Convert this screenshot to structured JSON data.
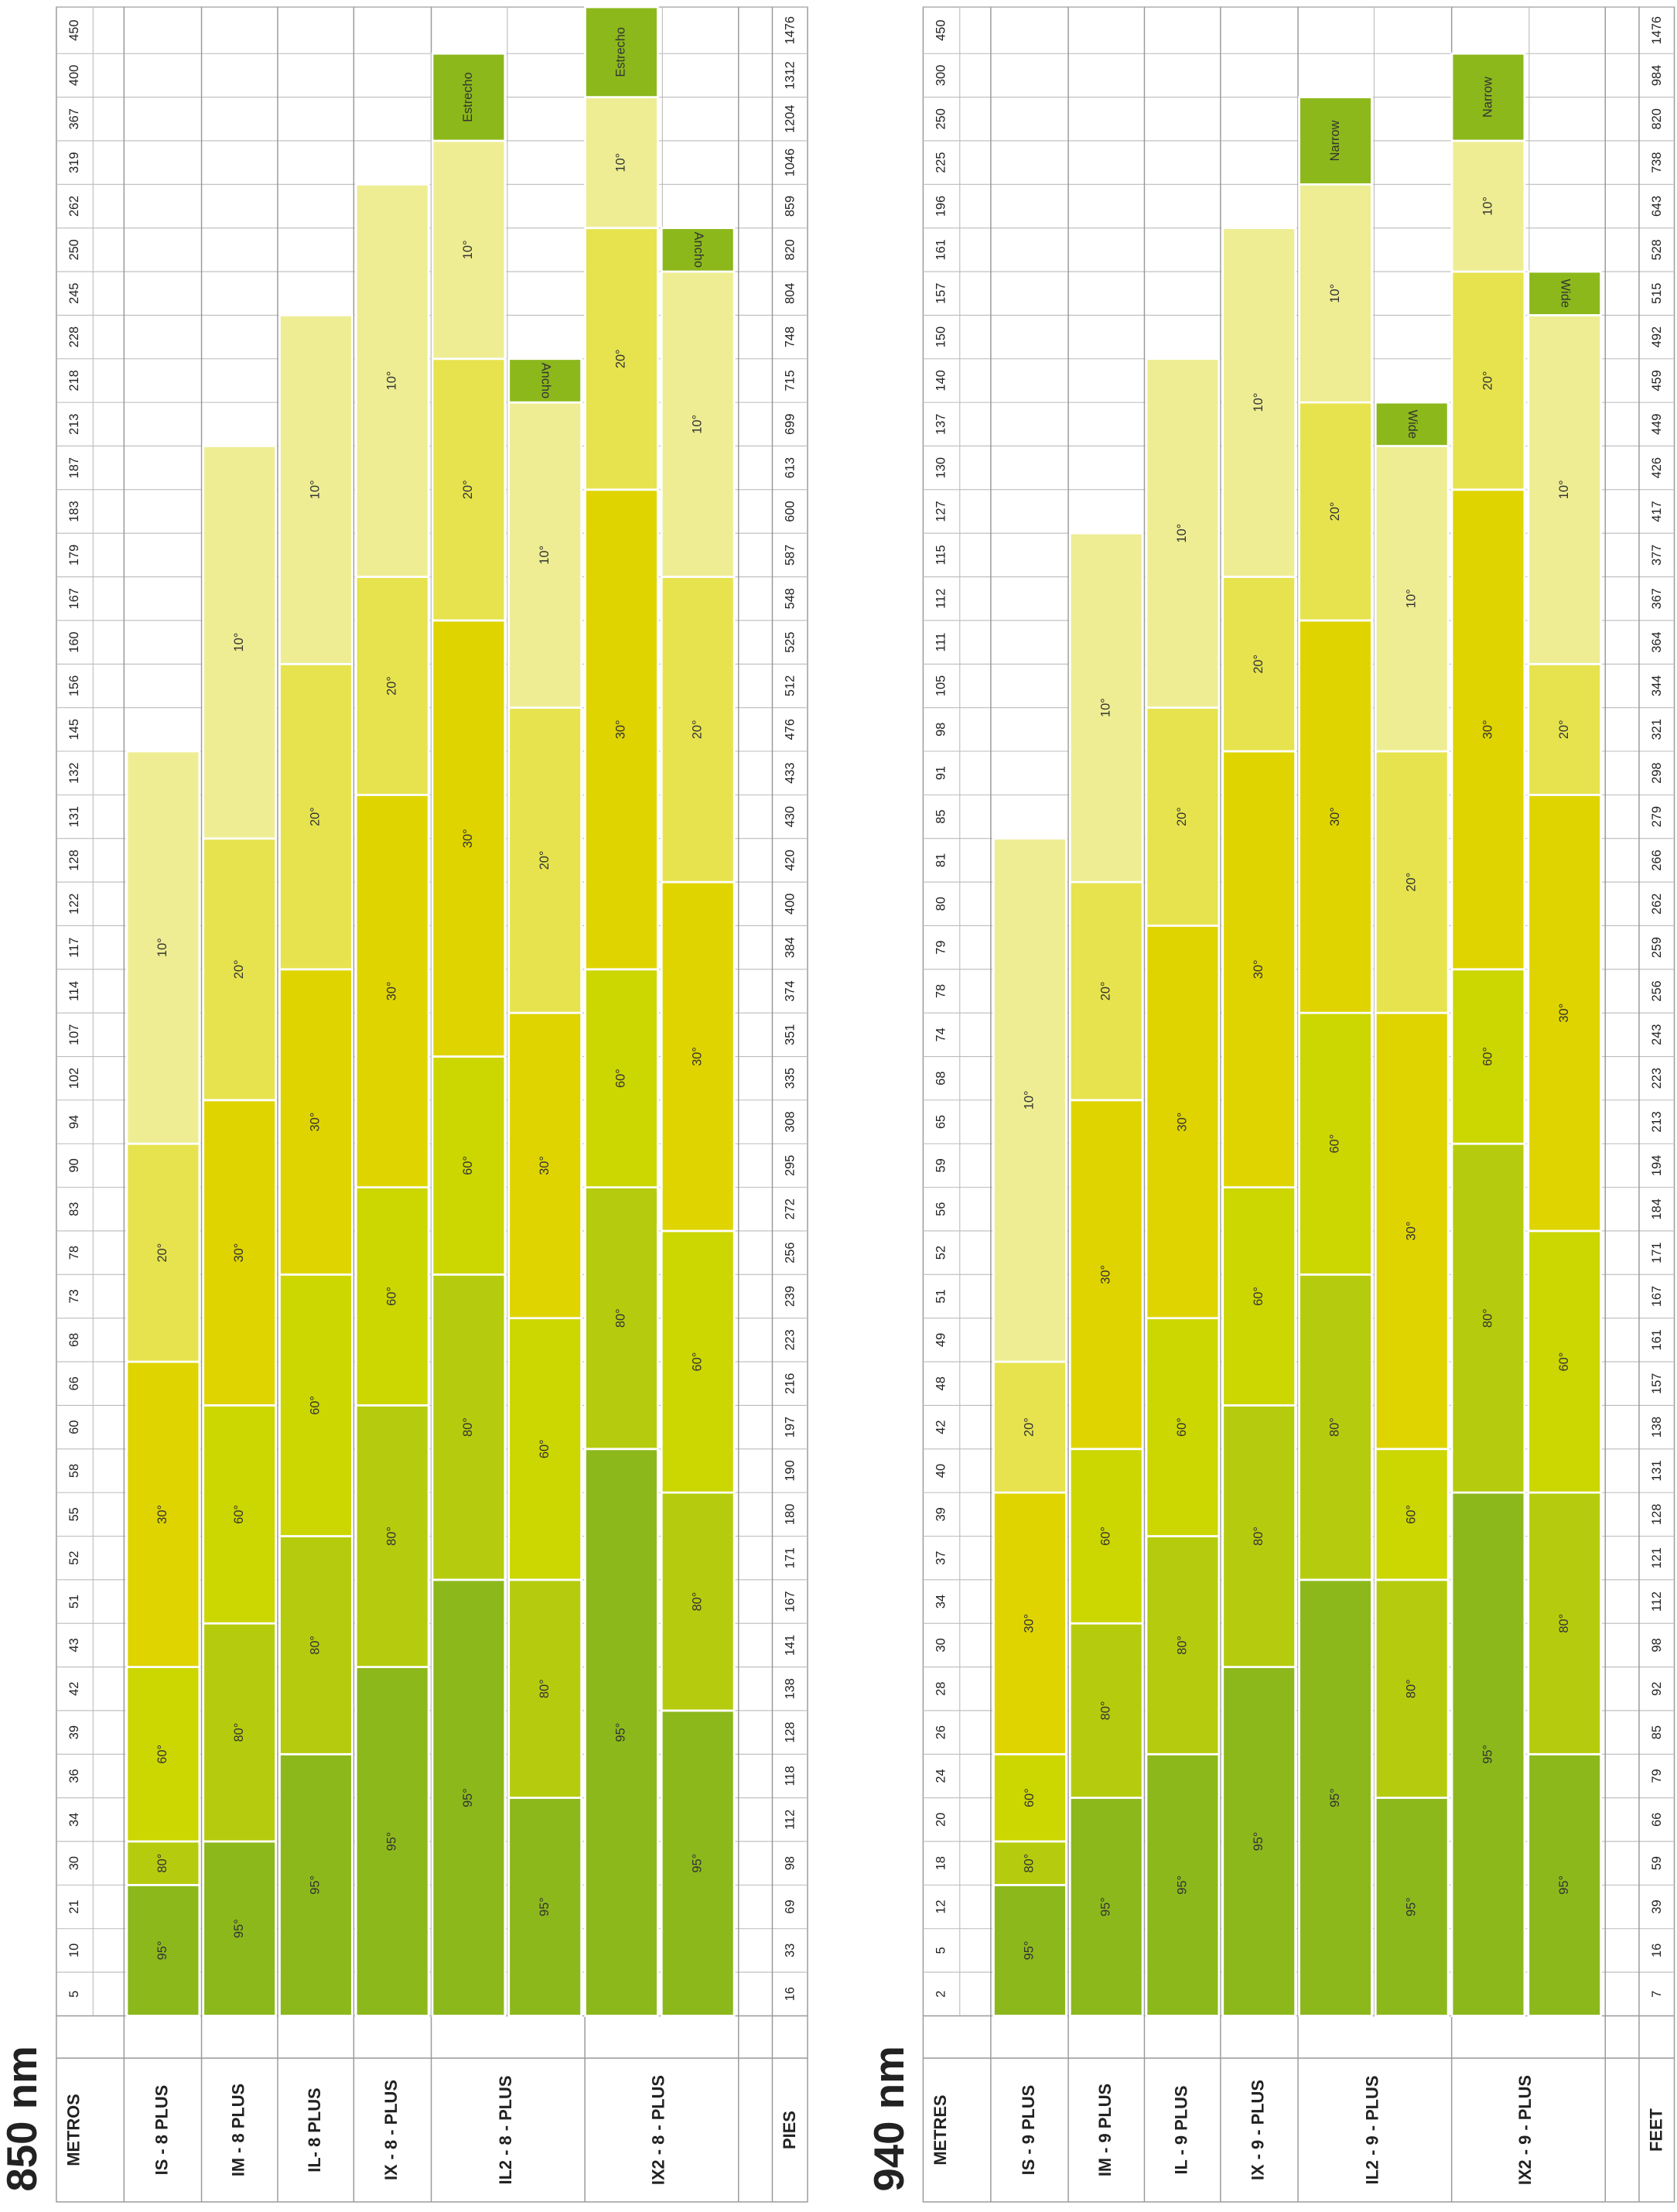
{
  "chart_data": [
    {
      "type": "range_bar",
      "title": "850 nm",
      "ylabel": "METROS",
      "y2label": "PIES",
      "yticks": [
        450,
        400,
        367,
        319,
        262,
        250,
        245,
        228,
        218,
        213,
        187,
        183,
        179,
        167,
        160,
        156,
        145,
        132,
        131,
        128,
        122,
        117,
        114,
        107,
        102,
        94,
        90,
        83,
        78,
        73,
        68,
        66,
        60,
        58,
        55,
        52,
        51,
        43,
        42,
        39,
        36,
        34,
        30,
        21,
        10,
        5
      ],
      "y2ticks": [
        1476,
        1312,
        1204,
        1046,
        859,
        820,
        804,
        748,
        715,
        699,
        613,
        600,
        587,
        548,
        525,
        512,
        476,
        433,
        430,
        420,
        400,
        384,
        374,
        351,
        335,
        308,
        295,
        272,
        256,
        239,
        223,
        216,
        197,
        190,
        180,
        171,
        167,
        141,
        138,
        128,
        118,
        112,
        98,
        69,
        33,
        16
      ],
      "groups": [
        {
          "name": "IS - 8 PLUS",
          "bars": [
            {
              "segments": [
                {
                  "label": "95°",
                  "end": 21,
                  "color": "#8cb81c"
                },
                {
                  "label": "80°",
                  "end": 30,
                  "color": "#b5cc0e"
                },
                {
                  "label": "60°",
                  "end": 42,
                  "color": "#ccd600"
                },
                {
                  "label": "30°",
                  "end": 66,
                  "color": "#dfd400"
                },
                {
                  "label": "20°",
                  "end": 90,
                  "color": "#e6e34e"
                },
                {
                  "label": "10°",
                  "end": 132,
                  "color": "#eeed93"
                }
              ]
            }
          ]
        },
        {
          "name": "IM - 8 PLUS",
          "bars": [
            {
              "segments": [
                {
                  "label": "95°",
                  "end": 30,
                  "color": "#8cb81c"
                },
                {
                  "label": "80°",
                  "end": 43,
                  "color": "#b5cc0e"
                },
                {
                  "label": "60°",
                  "end": 60,
                  "color": "#ccd600"
                },
                {
                  "label": "30°",
                  "end": 94,
                  "color": "#dfd400"
                },
                {
                  "label": "20°",
                  "end": 128,
                  "color": "#e6e34e"
                },
                {
                  "label": "10°",
                  "end": 187,
                  "color": "#eeed93"
                }
              ]
            }
          ]
        },
        {
          "name": "IL- 8 PLUS",
          "bars": [
            {
              "segments": [
                {
                  "label": "95°",
                  "end": 36,
                  "color": "#8cb81c"
                },
                {
                  "label": "80°",
                  "end": 52,
                  "color": "#b5cc0e"
                },
                {
                  "label": "60°",
                  "end": 73,
                  "color": "#ccd600"
                },
                {
                  "label": "30°",
                  "end": 114,
                  "color": "#dfd400"
                },
                {
                  "label": "20°",
                  "end": 156,
                  "color": "#e6e34e"
                },
                {
                  "label": "10°",
                  "end": 228,
                  "color": "#eeed93"
                }
              ]
            }
          ]
        },
        {
          "name": "IX - 8 - PLUS",
          "bars": [
            {
              "segments": [
                {
                  "label": "95°",
                  "end": 42,
                  "color": "#8cb81c"
                },
                {
                  "label": "80°",
                  "end": 60,
                  "color": "#b5cc0e"
                },
                {
                  "label": "60°",
                  "end": 83,
                  "color": "#ccd600"
                },
                {
                  "label": "30°",
                  "end": 131,
                  "color": "#dfd400"
                },
                {
                  "label": "20°",
                  "end": 167,
                  "color": "#e6e34e"
                },
                {
                  "label": "10°",
                  "end": 262,
                  "color": "#eeed93"
                }
              ]
            }
          ]
        },
        {
          "name": "IL2 - 8 - PLUS",
          "bars": [
            {
              "segments": [
                {
                  "label": "95°",
                  "end": 51,
                  "color": "#8cb81c"
                },
                {
                  "label": "80°",
                  "end": 73,
                  "color": "#b5cc0e"
                },
                {
                  "label": "60°",
                  "end": 102,
                  "color": "#ccd600"
                },
                {
                  "label": "30°",
                  "end": 160,
                  "color": "#dfd400"
                },
                {
                  "label": "20°",
                  "end": 218,
                  "color": "#e6e34e"
                },
                {
                  "label": "10°",
                  "end": 319,
                  "color": "#eeed93"
                },
                {
                  "label": "Estrecho",
                  "end": 400,
                  "color": "#8cb81c",
                  "rotate": -90
                }
              ]
            },
            {
              "segments": [
                {
                  "label": "95°",
                  "end": 34,
                  "color": "#8cb81c"
                },
                {
                  "label": "80°",
                  "end": 51,
                  "color": "#b5cc0e"
                },
                {
                  "label": "60°",
                  "end": 68,
                  "color": "#ccd600"
                },
                {
                  "label": "30°",
                  "end": 107,
                  "color": "#dfd400"
                },
                {
                  "label": "20°",
                  "end": 145,
                  "color": "#e6e34e"
                },
                {
                  "label": "10°",
                  "end": 213,
                  "color": "#eeed93"
                },
                {
                  "label": "Ancho",
                  "end": 218,
                  "color": "#8cb81c",
                  "rotate": 90
                }
              ]
            }
          ]
        },
        {
          "name": "IX2 - 8 - PLUS",
          "bars": [
            {
              "segments": [
                {
                  "label": "95°",
                  "end": 58,
                  "color": "#8cb81c"
                },
                {
                  "label": "80°",
                  "end": 83,
                  "color": "#b5cc0e"
                },
                {
                  "label": "60°",
                  "end": 114,
                  "color": "#ccd600"
                },
                {
                  "label": "30°",
                  "end": 183,
                  "color": "#dfd400"
                },
                {
                  "label": "20°",
                  "end": 250,
                  "color": "#e6e34e"
                },
                {
                  "label": "10°",
                  "end": 367,
                  "color": "#eeed93"
                },
                {
                  "label": "Estrecho",
                  "end": 450,
                  "color": "#8cb81c",
                  "rotate": -90
                }
              ]
            },
            {
              "segments": [
                {
                  "label": "95°",
                  "end": 39,
                  "color": "#8cb81c"
                },
                {
                  "label": "80°",
                  "end": 55,
                  "color": "#b5cc0e"
                },
                {
                  "label": "60°",
                  "end": 78,
                  "color": "#ccd600"
                },
                {
                  "label": "30°",
                  "end": 122,
                  "color": "#dfd400"
                },
                {
                  "label": "20°",
                  "end": 167,
                  "color": "#e6e34e"
                },
                {
                  "label": "10°",
                  "end": 245,
                  "color": "#eeed93"
                },
                {
                  "label": "Ancho",
                  "end": 250,
                  "color": "#8cb81c",
                  "rotate": 90
                }
              ]
            }
          ]
        }
      ]
    },
    {
      "type": "range_bar",
      "title": "940 nm",
      "ylabel": "METRES",
      "y2label": "FEET",
      "yticks": [
        450,
        300,
        250,
        225,
        196,
        161,
        157,
        150,
        140,
        137,
        130,
        127,
        115,
        112,
        111,
        105,
        98,
        91,
        85,
        81,
        80,
        79,
        78,
        74,
        68,
        65,
        59,
        56,
        52,
        51,
        49,
        48,
        42,
        40,
        39,
        37,
        34,
        30,
        28,
        26,
        24,
        20,
        18,
        12,
        5,
        2
      ],
      "y2ticks": [
        1476,
        984,
        820,
        738,
        643,
        528,
        515,
        492,
        459,
        449,
        426,
        417,
        377,
        367,
        364,
        344,
        321,
        298,
        279,
        266,
        262,
        259,
        256,
        243,
        223,
        213,
        194,
        184,
        171,
        167,
        161,
        157,
        138,
        131,
        128,
        121,
        112,
        98,
        92,
        85,
        79,
        66,
        59,
        39,
        16,
        7
      ],
      "groups": [
        {
          "name": "IS - 9 PLUS",
          "bars": [
            {
              "segments": [
                {
                  "label": "95°",
                  "end": 12,
                  "color": "#8cb81c"
                },
                {
                  "label": "80°",
                  "end": 18,
                  "color": "#b5cc0e"
                },
                {
                  "label": "60°",
                  "end": 24,
                  "color": "#ccd600"
                },
                {
                  "label": "30°",
                  "end": 39,
                  "color": "#dfd400"
                },
                {
                  "label": "20°",
                  "end": 48,
                  "color": "#e6e34e"
                },
                {
                  "label": "10°",
                  "end": 81,
                  "color": "#eeed93"
                }
              ]
            }
          ]
        },
        {
          "name": "IM - 9 PLUS",
          "bars": [
            {
              "segments": [
                {
                  "label": "95°",
                  "end": 20,
                  "color": "#8cb81c"
                },
                {
                  "label": "80°",
                  "end": 30,
                  "color": "#b5cc0e"
                },
                {
                  "label": "60°",
                  "end": 40,
                  "color": "#ccd600"
                },
                {
                  "label": "30°",
                  "end": 65,
                  "color": "#dfd400"
                },
                {
                  "label": "20°",
                  "end": 80,
                  "color": "#e6e34e"
                },
                {
                  "label": "10°",
                  "end": 115,
                  "color": "#eeed93"
                }
              ]
            }
          ]
        },
        {
          "name": "IL - 9 PLUS",
          "bars": [
            {
              "segments": [
                {
                  "label": "95°",
                  "end": 24,
                  "color": "#8cb81c"
                },
                {
                  "label": "80°",
                  "end": 37,
                  "color": "#b5cc0e"
                },
                {
                  "label": "60°",
                  "end": 49,
                  "color": "#ccd600"
                },
                {
                  "label": "30°",
                  "end": 79,
                  "color": "#dfd400"
                },
                {
                  "label": "20°",
                  "end": 98,
                  "color": "#e6e34e"
                },
                {
                  "label": "10°",
                  "end": 140,
                  "color": "#eeed93"
                }
              ]
            }
          ]
        },
        {
          "name": "IX - 9 - PLUS",
          "bars": [
            {
              "segments": [
                {
                  "label": "95°",
                  "end": 28,
                  "color": "#8cb81c"
                },
                {
                  "label": "80°",
                  "end": 42,
                  "color": "#b5cc0e"
                },
                {
                  "label": "60°",
                  "end": 56,
                  "color": "#ccd600"
                },
                {
                  "label": "30°",
                  "end": 91,
                  "color": "#dfd400"
                },
                {
                  "label": "20°",
                  "end": 112,
                  "color": "#e6e34e"
                },
                {
                  "label": "10°",
                  "end": 161,
                  "color": "#eeed93"
                }
              ]
            }
          ]
        },
        {
          "name": "IL2 - 9 - PLUS",
          "bars": [
            {
              "segments": [
                {
                  "label": "95°",
                  "end": 34,
                  "color": "#8cb81c"
                },
                {
                  "label": "80°",
                  "end": 51,
                  "color": "#b5cc0e"
                },
                {
                  "label": "60°",
                  "end": 74,
                  "color": "#ccd600"
                },
                {
                  "label": "30°",
                  "end": 111,
                  "color": "#dfd400"
                },
                {
                  "label": "20°",
                  "end": 137,
                  "color": "#e6e34e"
                },
                {
                  "label": "10°",
                  "end": 196,
                  "color": "#eeed93"
                },
                {
                  "label": "Narrow",
                  "end": 250,
                  "color": "#8cb81c",
                  "rotate": -90
                }
              ]
            },
            {
              "segments": [
                {
                  "label": "95°",
                  "end": 20,
                  "color": "#8cb81c"
                },
                {
                  "label": "80°",
                  "end": 34,
                  "color": "#b5cc0e"
                },
                {
                  "label": "60°",
                  "end": 40,
                  "color": "#ccd600"
                },
                {
                  "label": "30°",
                  "end": 74,
                  "color": "#dfd400"
                },
                {
                  "label": "20°",
                  "end": 91,
                  "color": "#e6e34e"
                },
                {
                  "label": "10°",
                  "end": 130,
                  "color": "#eeed93"
                },
                {
                  "label": "Wide",
                  "end": 137,
                  "color": "#8cb81c",
                  "rotate": 90
                }
              ]
            }
          ]
        },
        {
          "name": "IX2 - 9 - PLUS",
          "bars": [
            {
              "segments": [
                {
                  "label": "95°",
                  "end": 39,
                  "color": "#8cb81c"
                },
                {
                  "label": "80°",
                  "end": 59,
                  "color": "#b5cc0e"
                },
                {
                  "label": "60°",
                  "end": 78,
                  "color": "#ccd600"
                },
                {
                  "label": "30°",
                  "end": 127,
                  "color": "#dfd400"
                },
                {
                  "label": "20°",
                  "end": 157,
                  "color": "#e6e34e"
                },
                {
                  "label": "10°",
                  "end": 225,
                  "color": "#eeed93"
                },
                {
                  "label": "Narrow",
                  "end": 300,
                  "color": "#8cb81c",
                  "rotate": -90
                }
              ]
            },
            {
              "segments": [
                {
                  "label": "95°",
                  "end": 24,
                  "color": "#8cb81c"
                },
                {
                  "label": "80°",
                  "end": 39,
                  "color": "#b5cc0e"
                },
                {
                  "label": "60°",
                  "end": 52,
                  "color": "#ccd600"
                },
                {
                  "label": "30°",
                  "end": 85,
                  "color": "#dfd400"
                },
                {
                  "label": "20°",
                  "end": 105,
                  "color": "#e6e34e"
                },
                {
                  "label": "10°",
                  "end": 150,
                  "color": "#eeed93"
                },
                {
                  "label": "Wide",
                  "end": 157,
                  "color": "#8cb81c",
                  "rotate": 90
                }
              ]
            }
          ]
        }
      ]
    }
  ]
}
